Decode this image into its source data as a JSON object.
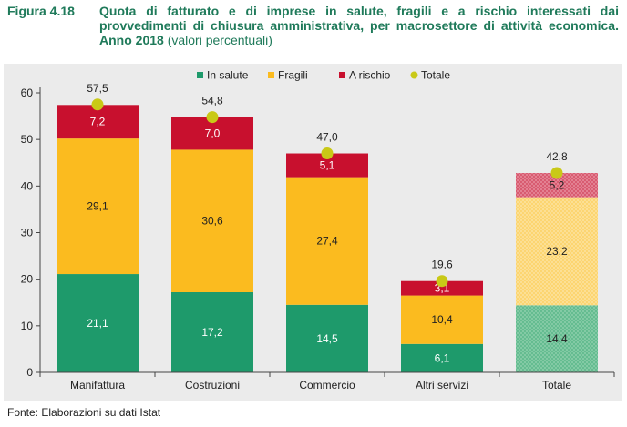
{
  "header": {
    "figure_label": "Figura 4.18",
    "title": "Quota di fatturato e di imprese in salute, fragili e a rischio interessati dai provvedimenti di chiusura amministrativa, per macrosettore di attività economica. Anno 2018",
    "subtitle": "(valori percentuali)"
  },
  "source": "Fonte: Elaborazioni su dati Istat",
  "chart_data": {
    "type": "bar",
    "stacked": true,
    "categories": [
      "Manifattura",
      "Costruzioni",
      "Commercio",
      "Altri servizi",
      "Totale"
    ],
    "series": [
      {
        "name": "In salute",
        "color": "#1e9a6b",
        "values": [
          21.1,
          17.2,
          14.5,
          6.1,
          14.4
        ],
        "labels": [
          "21,1",
          "17,2",
          "14,5",
          "6,1",
          "14,4"
        ]
      },
      {
        "name": "Fragili",
        "color": "#fbbb1f",
        "values": [
          29.1,
          30.6,
          27.4,
          10.4,
          23.2
        ],
        "labels": [
          "29,1",
          "30,6",
          "27,4",
          "10,4",
          "23,2"
        ]
      },
      {
        "name": "A rischio",
        "color": "#c8102e",
        "values": [
          7.2,
          7.0,
          5.1,
          3.1,
          5.2
        ],
        "labels": [
          "7,2",
          "7,0",
          "5,1",
          "3,1",
          "5,2"
        ]
      }
    ],
    "total": {
      "name": "Totale",
      "color": "#c9c917",
      "values": [
        57.5,
        54.8,
        47.0,
        19.6,
        42.8
      ],
      "labels": [
        "57,5",
        "54,8",
        "47,0",
        "19,6",
        "42,8"
      ]
    },
    "hatched_category": "Totale",
    "ylim": [
      0,
      60
    ],
    "yticks": [
      "0",
      "10",
      "20",
      "30",
      "40",
      "50",
      "60"
    ],
    "legend_position": "top-center",
    "grid": false
  }
}
